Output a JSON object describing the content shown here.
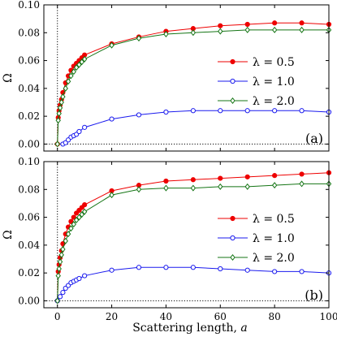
{
  "colors": {
    "lambda_0_5": "#ee0000",
    "lambda_1_0": "#1a1aee",
    "lambda_2_0": "#157515",
    "frame": "#000000",
    "reference_line": "#000000"
  },
  "figure": {
    "xlabel_text": "Scattering length, ",
    "xlabel_symbol": "a"
  },
  "chart_data": [
    {
      "type": "line",
      "panel_tag": "(a)",
      "ylabel": "Ω",
      "xlim": [
        -5,
        100
      ],
      "ylim": [
        -0.005,
        0.1
      ],
      "xticks": [
        0,
        20,
        40,
        60,
        80,
        100
      ],
      "yticks": [
        0.0,
        0.02,
        0.04,
        0.06,
        0.08,
        0.1
      ],
      "xticklabels_visible": false,
      "legend_position": "right",
      "reference_lines": {
        "vertical_x": 0,
        "horizontal_y": 0,
        "style": "dotted"
      },
      "series": [
        {
          "name": "λ = 0.5",
          "marker": "filled-circle",
          "color_key": "lambda_0_5",
          "x": [
            0,
            0.3,
            0.6,
            1,
            1.5,
            2,
            3,
            4,
            5,
            6,
            7,
            8,
            9,
            10,
            20,
            30,
            40,
            50,
            60,
            70,
            80,
            90,
            100
          ],
          "y": [
            0.0,
            0.019,
            0.024,
            0.028,
            0.032,
            0.037,
            0.044,
            0.049,
            0.053,
            0.056,
            0.058,
            0.06,
            0.062,
            0.064,
            0.072,
            0.077,
            0.081,
            0.083,
            0.085,
            0.086,
            0.087,
            0.087,
            0.086
          ]
        },
        {
          "name": "λ = 1.0",
          "marker": "open-circle",
          "color_key": "lambda_1_0",
          "x": [
            2,
            3,
            4,
            5,
            6,
            7,
            8,
            10,
            20,
            30,
            40,
            50,
            60,
            70,
            80,
            90,
            100
          ],
          "y": [
            0.0,
            0.001,
            0.003,
            0.005,
            0.006,
            0.007,
            0.009,
            0.012,
            0.018,
            0.021,
            0.023,
            0.024,
            0.024,
            0.024,
            0.024,
            0.024,
            0.023
          ]
        },
        {
          "name": "λ = 2.0",
          "marker": "open-diamond",
          "color_key": "lambda_2_0",
          "x": [
            0,
            0.3,
            0.6,
            1,
            1.5,
            2,
            3,
            4,
            5,
            6,
            7,
            8,
            9,
            10,
            20,
            30,
            40,
            50,
            60,
            70,
            80,
            90,
            100
          ],
          "y": [
            0.0,
            0.017,
            0.022,
            0.026,
            0.03,
            0.034,
            0.04,
            0.045,
            0.049,
            0.052,
            0.055,
            0.057,
            0.059,
            0.061,
            0.071,
            0.076,
            0.079,
            0.08,
            0.081,
            0.082,
            0.082,
            0.082,
            0.082
          ]
        }
      ]
    },
    {
      "type": "line",
      "panel_tag": "(b)",
      "ylabel": "Ω",
      "xlim": [
        -5,
        100
      ],
      "ylim": [
        -0.005,
        0.1
      ],
      "xticks": [
        0,
        20,
        40,
        60,
        80,
        100
      ],
      "yticks": [
        0.0,
        0.02,
        0.04,
        0.06,
        0.08,
        0.1
      ],
      "xticklabels_visible": true,
      "legend_position": "right",
      "reference_lines": {
        "vertical_x": 0,
        "horizontal_y": 0,
        "style": "dotted"
      },
      "series": [
        {
          "name": "λ = 0.5",
          "marker": "filled-circle",
          "color_key": "lambda_0_5",
          "x": [
            0,
            0.3,
            0.6,
            1,
            1.5,
            2,
            3,
            4,
            5,
            6,
            7,
            8,
            9,
            10,
            20,
            30,
            40,
            50,
            60,
            70,
            80,
            90,
            100
          ],
          "y": [
            0.0,
            0.021,
            0.026,
            0.031,
            0.036,
            0.041,
            0.048,
            0.053,
            0.057,
            0.06,
            0.063,
            0.065,
            0.067,
            0.069,
            0.079,
            0.083,
            0.086,
            0.087,
            0.088,
            0.089,
            0.09,
            0.091,
            0.092
          ]
        },
        {
          "name": "λ = 1.0",
          "marker": "open-circle",
          "color_key": "lambda_1_0",
          "x": [
            0,
            1,
            2,
            3,
            4,
            5,
            6,
            7,
            8,
            10,
            20,
            30,
            40,
            50,
            60,
            70,
            80,
            90,
            100
          ],
          "y": [
            0.0,
            0.003,
            0.006,
            0.009,
            0.011,
            0.013,
            0.014,
            0.015,
            0.016,
            0.018,
            0.022,
            0.024,
            0.024,
            0.024,
            0.023,
            0.022,
            0.021,
            0.021,
            0.02
          ]
        },
        {
          "name": "λ = 2.0",
          "marker": "open-diamond",
          "color_key": "lambda_2_0",
          "x": [
            0,
            0.3,
            0.6,
            1,
            1.5,
            2,
            3,
            4,
            5,
            6,
            7,
            8,
            9,
            10,
            20,
            30,
            40,
            50,
            60,
            70,
            80,
            90,
            100
          ],
          "y": [
            0.0,
            0.018,
            0.023,
            0.028,
            0.033,
            0.037,
            0.043,
            0.048,
            0.052,
            0.055,
            0.058,
            0.06,
            0.062,
            0.064,
            0.076,
            0.08,
            0.081,
            0.081,
            0.082,
            0.082,
            0.083,
            0.084,
            0.084
          ]
        }
      ]
    }
  ]
}
